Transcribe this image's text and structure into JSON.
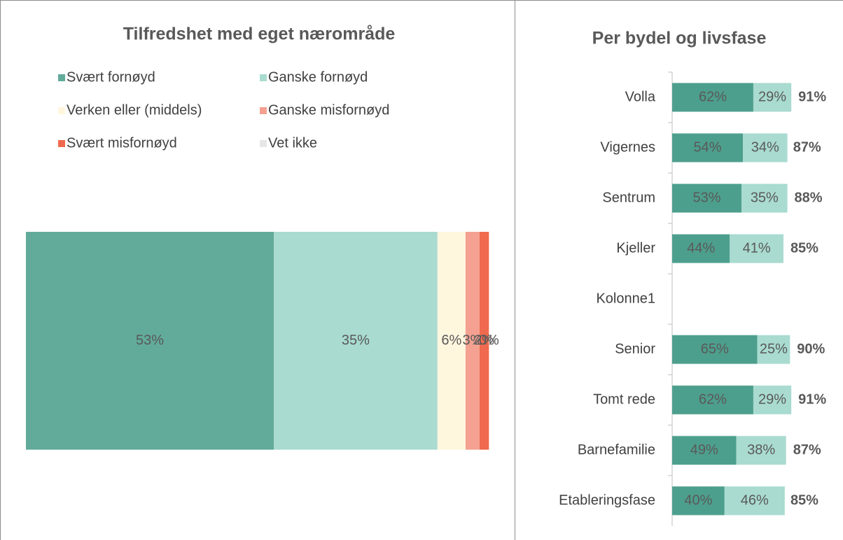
{
  "chart_data": [
    {
      "type": "bar",
      "orientation": "horizontal",
      "stacked": true,
      "title": "Tilfredshet med eget nærområde",
      "xlim": [
        0,
        100
      ],
      "series": [
        {
          "name": "Svært fornøyd",
          "color": "#62ab9b",
          "values": [
            53
          ],
          "value_labels": [
            "53%"
          ]
        },
        {
          "name": "Ganske fornøyd",
          "color": "#a9dbd0",
          "values": [
            35
          ],
          "value_labels": [
            "35%"
          ]
        },
        {
          "name": "Verken eller (middels)",
          "color": "#fff6de",
          "values": [
            6
          ],
          "value_labels": [
            "6%"
          ]
        },
        {
          "name": "Ganske misfornøyd",
          "color": "#f4a191",
          "values": [
            3
          ],
          "value_labels": [
            "3%"
          ]
        },
        {
          "name": "Svært misfornøyd",
          "color": "#ef6a4e",
          "values": [
            2
          ],
          "value_labels": [
            "2%"
          ]
        },
        {
          "name": "Vet ikke",
          "color": "#e6e6e6",
          "values": [
            0
          ],
          "value_labels": [
            "0%"
          ]
        }
      ]
    },
    {
      "type": "bar",
      "orientation": "horizontal",
      "stacked": true,
      "title": "Per bydel og livsfase",
      "xlim": [
        0,
        100
      ],
      "categories": [
        "Volla",
        "Vigernes",
        "Sentrum",
        "Kjeller",
        "Kolonne1",
        "Senior",
        "Tomt rede",
        "Barnefamilie",
        "Etableringsfase"
      ],
      "series": [
        {
          "color": "#4d9f8d",
          "values": [
            62,
            54,
            53,
            44,
            null,
            65,
            62,
            49,
            40
          ],
          "value_labels": [
            "62%",
            "54%",
            "53%",
            "44%",
            null,
            "65%",
            "62%",
            "49%",
            "40%"
          ]
        },
        {
          "color": "#a9dbd0",
          "values": [
            29,
            34,
            35,
            41,
            null,
            25,
            29,
            38,
            46
          ],
          "value_labels": [
            "29%",
            "34%",
            "35%",
            "41%",
            null,
            "25%",
            "29%",
            "38%",
            "46%"
          ]
        }
      ],
      "totals": [
        91,
        87,
        88,
        85,
        null,
        90,
        91,
        87,
        85
      ],
      "total_labels": [
        "91%",
        "87%",
        "88%",
        "85%",
        null,
        "90%",
        "91%",
        "87%",
        "85%"
      ]
    }
  ]
}
